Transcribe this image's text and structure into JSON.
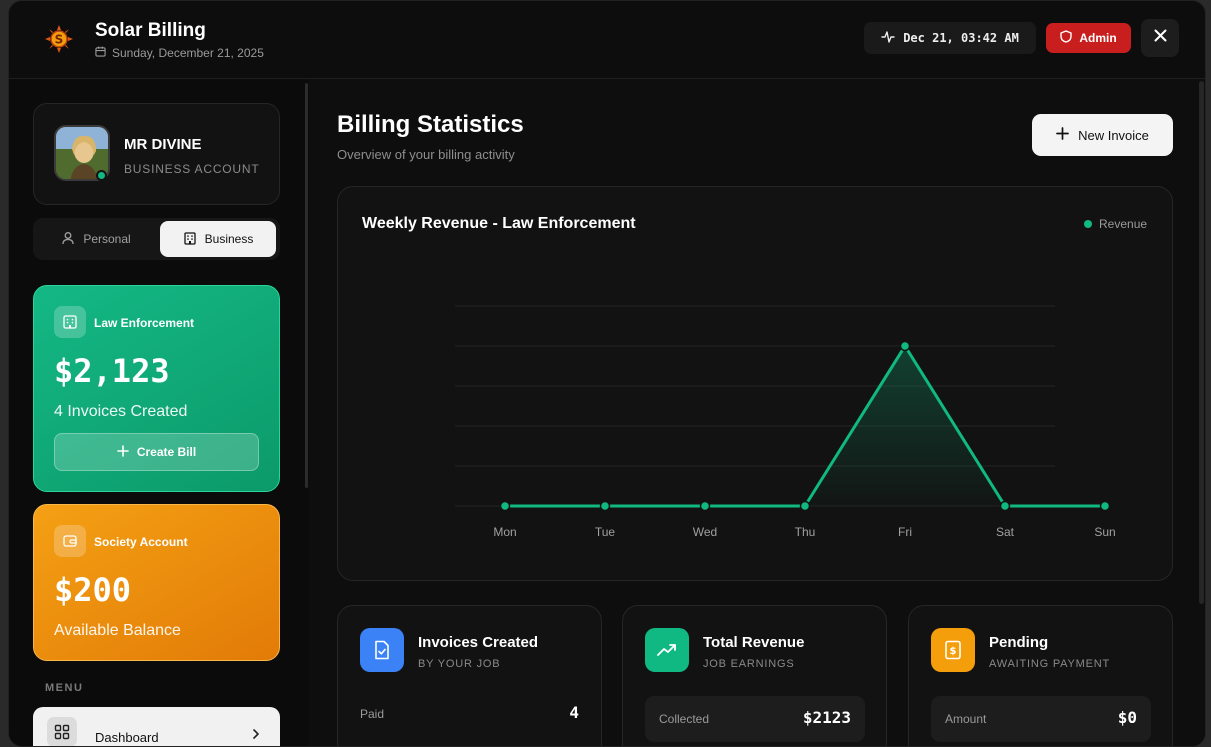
{
  "header": {
    "title": "Solar Billing",
    "date": "Sunday, December 21, 2025",
    "clock": "Dec 21, 03:42 AM",
    "role_badge": "Admin"
  },
  "sidebar": {
    "profile": {
      "name": "MR DIVINE",
      "account_type": "BUSINESS ACCOUNT"
    },
    "toggle": {
      "personal": "Personal",
      "business": "Business",
      "active": "Business"
    },
    "job_card": {
      "label": "Law Enforcement",
      "amount": "$2,123",
      "subtitle": "4 Invoices Created",
      "button": "Create Bill",
      "color": "#10b981"
    },
    "society_card": {
      "label": "Society Account",
      "amount": "$200",
      "subtitle": "Available Balance",
      "color": "#f59e0b"
    },
    "menu_label": "MENU",
    "menu_items": [
      {
        "label": "Dashboard"
      }
    ]
  },
  "main": {
    "title": "Billing Statistics",
    "subtitle": "Overview of your billing activity",
    "new_invoice_button": "New Invoice",
    "stats": [
      {
        "title": "Invoices Created",
        "subtitle": "BY YOUR JOB",
        "row_label": "Paid",
        "row_value": "4",
        "color": "#3b82f6"
      },
      {
        "title": "Total Revenue",
        "subtitle": "JOB EARNINGS",
        "row_label": "Collected",
        "row_value": "$2123",
        "color": "#10b981"
      },
      {
        "title": "Pending",
        "subtitle": "AWAITING PAYMENT",
        "row_label": "Amount",
        "row_value": "$0",
        "color": "#f59e0b"
      }
    ]
  },
  "chart_data": {
    "type": "area",
    "title": "Weekly Revenue - Law Enforcement",
    "categories": [
      "Mon",
      "Tue",
      "Wed",
      "Thu",
      "Fri",
      "Sat",
      "Sun"
    ],
    "series": [
      {
        "name": "Revenue",
        "values": [
          0,
          0,
          0,
          0,
          2123,
          0,
          0
        ]
      }
    ],
    "ylim": [
      0,
      2654
    ],
    "grid": true,
    "legend": "top-right",
    "color": "#10b981"
  }
}
